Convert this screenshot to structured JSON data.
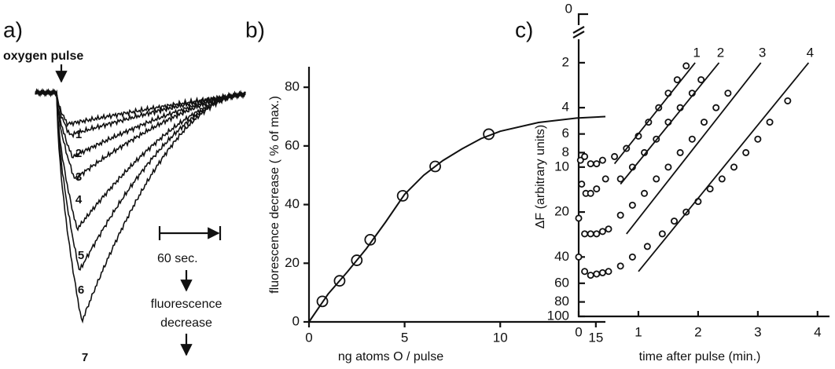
{
  "chart_data": [
    {
      "type": "trace",
      "label": "a)",
      "pulse_label": "oxygen pulse",
      "scale_label": "60 sec.",
      "direction_label": [
        "fluorescence",
        "decrease"
      ],
      "curve_labels": [
        "1",
        "2",
        "3",
        "4",
        "5",
        "6",
        "7"
      ]
    },
    {
      "type": "scatter",
      "label": "b)",
      "xlabel": "ng atoms O / pulse",
      "ylabel": "fluorescence decrease  ( % of max.)",
      "xlim": [
        0,
        15.5
      ],
      "ylim": [
        0,
        87
      ],
      "xticks": [
        0,
        5,
        10,
        15
      ],
      "yticks": [
        0,
        20,
        40,
        60,
        80
      ],
      "series": [
        {
          "marker": "circle",
          "color": "#111111",
          "x": [
            0.7,
            1.6,
            2.5,
            3.2,
            4.9,
            6.6,
            9.4
          ],
          "values": [
            7,
            14,
            21,
            28,
            43,
            53,
            64
          ]
        },
        {
          "marker": "line",
          "color": "#111111",
          "x": [
            0,
            1,
            2,
            3,
            4,
            5,
            6,
            7,
            8,
            9,
            10,
            12,
            14,
            15.5
          ],
          "values": [
            0,
            9.5,
            17,
            25,
            34,
            43.5,
            50,
            55,
            59,
            62.5,
            65,
            68,
            69.5,
            70
          ]
        }
      ]
    },
    {
      "type": "scatter",
      "label": "c)",
      "xlabel": "time after pulse (min.)",
      "ylabel": "ΔF (arbitrary units)",
      "yscale": "log",
      "y_inverted": true,
      "break_label": "0",
      "xlim": [
        0,
        4.2
      ],
      "ylim": [
        1.67,
        100
      ],
      "xticks": [
        0,
        1,
        2,
        3,
        4
      ],
      "yticks": [
        2,
        4,
        6,
        8,
        10,
        20,
        40,
        60,
        80,
        100
      ],
      "series": [
        {
          "name": "1",
          "marker": "circle",
          "color": "#111111",
          "x": [
            0.03,
            0.1,
            0.2,
            0.3,
            0.4,
            0.6,
            0.8,
            1.0,
            1.17,
            1.34,
            1.5,
            1.65,
            1.8
          ],
          "values": [
            9,
            8.5,
            9.5,
            9.5,
            9,
            8.5,
            7.5,
            6.2,
            5,
            4,
            3.2,
            2.6,
            2.1
          ],
          "fit_x": [
            0.6,
            1.95
          ],
          "fit_values": [
            9.5,
            2
          ]
        },
        {
          "name": "2",
          "marker": "circle",
          "color": "#111111",
          "x": [
            0.05,
            0.12,
            0.2,
            0.3,
            0.45,
            0.7,
            0.9,
            1.1,
            1.3,
            1.5,
            1.7,
            1.9,
            2.05
          ],
          "values": [
            13,
            15,
            15,
            14,
            12,
            12,
            10,
            8,
            6.5,
            5,
            4,
            3.2,
            2.6
          ],
          "fit_x": [
            0.7,
            2.35
          ],
          "fit_values": [
            13,
            2
          ]
        },
        {
          "name": "3",
          "marker": "circle",
          "color": "#111111",
          "x": [
            0,
            0.1,
            0.2,
            0.3,
            0.4,
            0.5,
            0.7,
            0.9,
            1.1,
            1.3,
            1.5,
            1.7,
            1.9,
            2.1,
            2.3,
            2.5
          ],
          "values": [
            22,
            28,
            28,
            28,
            27,
            26,
            21,
            18,
            15,
            12,
            10,
            8,
            6.5,
            5,
            4,
            3.2
          ],
          "fit_x": [
            0.8,
            3.05
          ],
          "fit_values": [
            28,
            2
          ]
        },
        {
          "name": "4",
          "marker": "circle",
          "color": "#111111",
          "x": [
            0,
            0.1,
            0.2,
            0.3,
            0.4,
            0.5,
            0.7,
            0.9,
            1.15,
            1.4,
            1.6,
            1.8,
            2.0,
            2.2,
            2.4,
            2.6,
            2.8,
            3.0,
            3.2,
            3.5
          ],
          "values": [
            40,
            50,
            53,
            52,
            51,
            50,
            46,
            40,
            34,
            28,
            23,
            20,
            17,
            14,
            12,
            10,
            8,
            6.5,
            5,
            3.6
          ],
          "fit_x": [
            1.0,
            3.85
          ],
          "fit_values": [
            50,
            2
          ]
        }
      ]
    }
  ]
}
